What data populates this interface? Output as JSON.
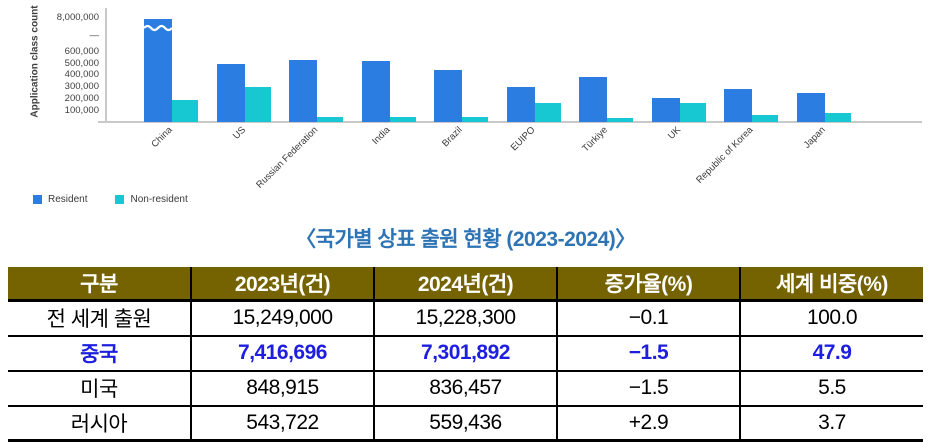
{
  "caption": "〈국가별 상표 출원 현황 (2023-2024)〉",
  "colors": {
    "resident_bar": "#2b7de1",
    "nonresident_bar": "#17c7d2",
    "axis_line": "#c9c9c9",
    "tick_text": "#3f3f3f",
    "caption_blue": "#2e74b5",
    "table_header_bg": "#756200",
    "table_header_text": "#ffffff",
    "highlight_row_text": "#1e1ee0"
  },
  "chart_data": [
    {
      "type": "bar",
      "title": "",
      "xlabel": "",
      "ylabel": "Application class count",
      "categories": [
        "China",
        "US",
        "Russian Federation",
        "India",
        "Brazil",
        "EUIPO",
        "Türkiye",
        "UK",
        "Republic of Korea",
        "Japan"
      ],
      "series": [
        {
          "name": "Resident",
          "color": "#2b7de1",
          "values": [
            7400000,
            490000,
            530000,
            520000,
            440000,
            295000,
            385000,
            205000,
            280000,
            245000
          ]
        },
        {
          "name": "Non-resident",
          "color": "#17c7d2",
          "values": [
            185000,
            295000,
            45000,
            45000,
            40000,
            160000,
            35000,
            165000,
            58000,
            80000
          ]
        }
      ],
      "ytick_labels": [
        "8,000,000",
        "—",
        "600,000",
        "500,000",
        "400,000",
        "300,000",
        "200,000",
        "100,000"
      ],
      "ytick_values": [
        8000000,
        null,
        600000,
        500000,
        400000,
        300000,
        200000,
        100000
      ],
      "ylim": [
        0,
        8000000
      ],
      "axis_break": {
        "above": 650000,
        "top_value": 8000000,
        "broken_series": "Resident",
        "broken_category": "China"
      },
      "grid": false,
      "legend_position": "bottom-left"
    },
    {
      "type": "table",
      "headers": [
        "구분",
        "2023년(건)",
        "2024년(건)",
        "증가율(%)",
        "세계 비중(%)"
      ],
      "rows": [
        {
          "cells": [
            "전 세계 출원",
            "15,249,000",
            "15,228,300",
            "−0.1",
            "100.0"
          ],
          "highlight": false
        },
        {
          "cells": [
            "중국",
            "7,416,696",
            "7,301,892",
            "−1.5",
            "47.9"
          ],
          "highlight": true
        },
        {
          "cells": [
            "미국",
            "848,915",
            "836,457",
            "−1.5",
            "5.5"
          ],
          "highlight": false
        },
        {
          "cells": [
            "러시아",
            "543,722",
            "559,436",
            "+2.9",
            "3.7"
          ],
          "highlight": false
        }
      ]
    }
  ]
}
